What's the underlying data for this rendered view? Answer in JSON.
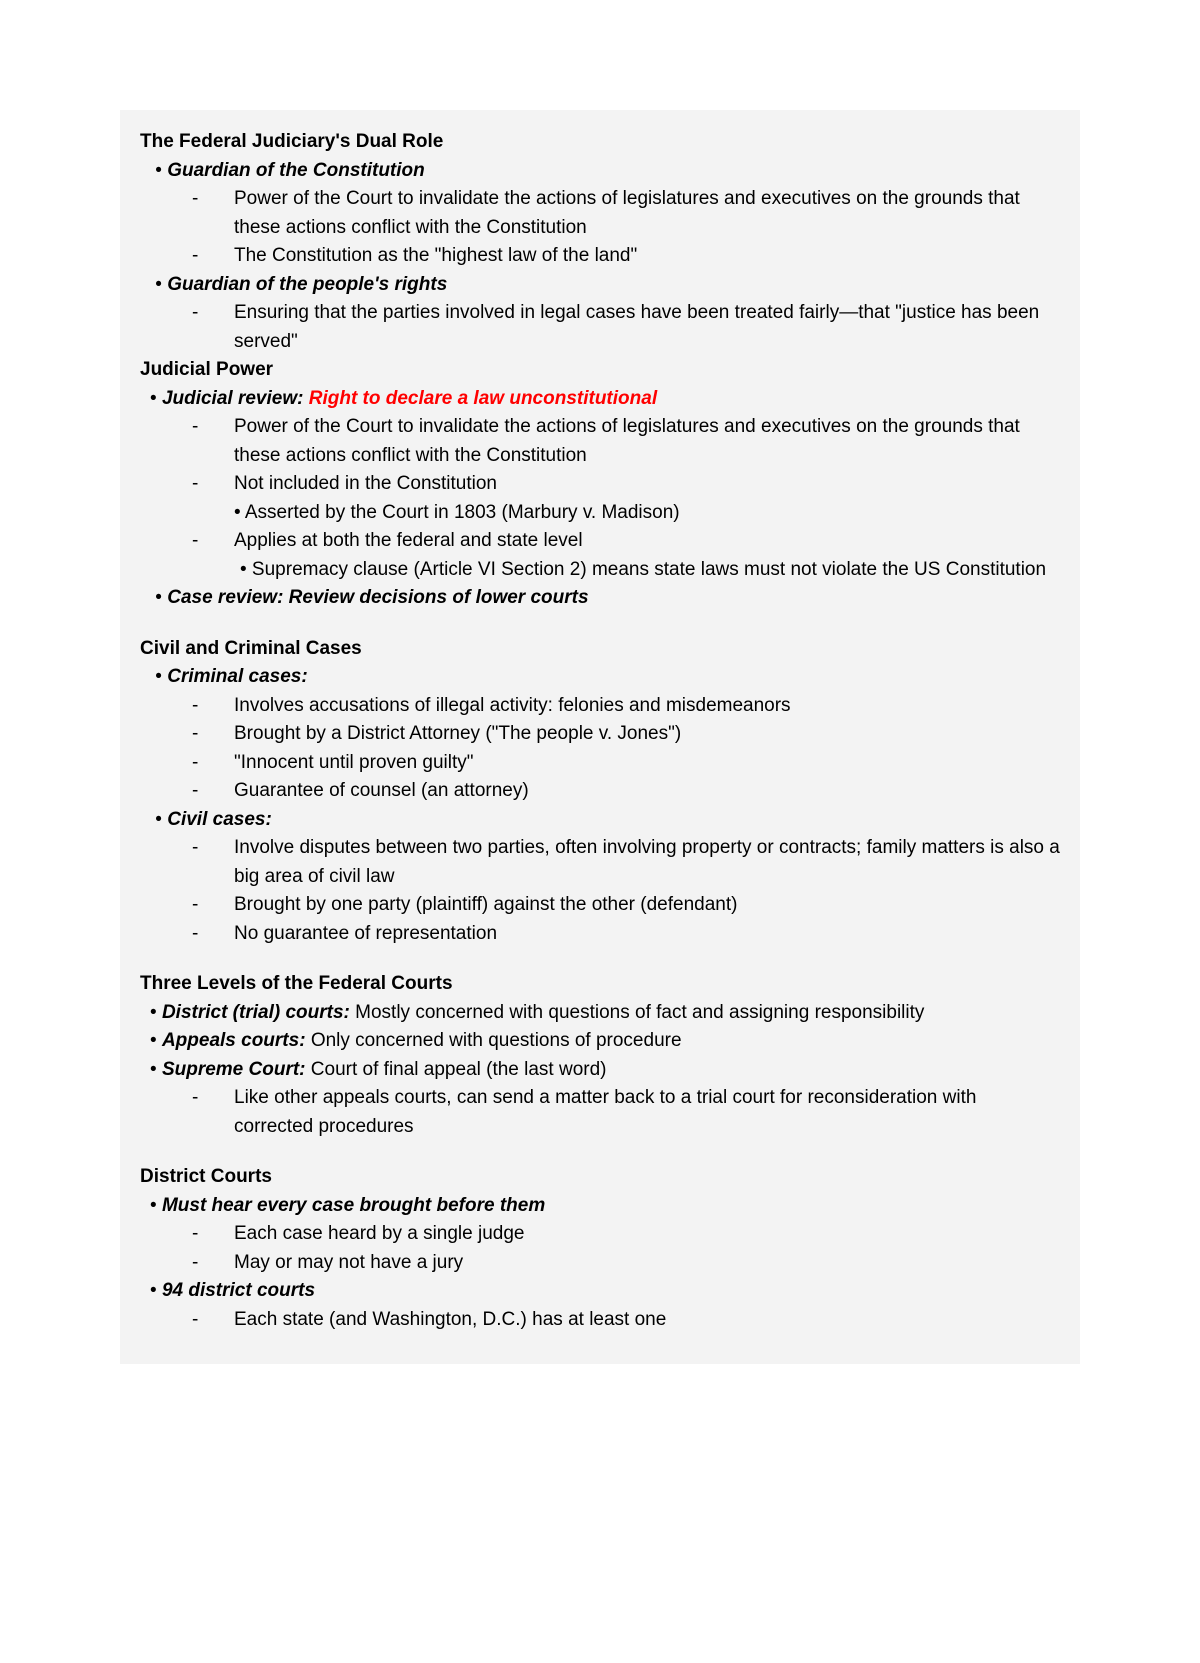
{
  "colors": {
    "page_bg": "#f3f3f3",
    "text": "#000000",
    "highlight_red": "#ff0000"
  },
  "typography": {
    "font_family": "Arial",
    "font_size_pt": 14,
    "line_height": 1.5,
    "heading_weight": "bold",
    "subheading_style": "bold italic"
  },
  "s1": {
    "title": "The Federal Judiciary's Dual Role",
    "b1": {
      "label": "Guardian of the Constitution",
      "d1": "Power of the Court to invalidate the actions of legislatures and executives on the grounds that these actions conflict with the Constitution",
      "d2": "The Constitution as the \"highest law of the land\""
    },
    "b2": {
      "label": "Guardian of the people's rights",
      "d1": "Ensuring that the parties involved in legal cases have been treated fairly—that \"justice has been served\""
    }
  },
  "s2": {
    "title": "Judicial Power",
    "b1": {
      "label": "Judicial review: ",
      "highlight": "Right to declare a law unconstitutional",
      "d1": "Power of the Court to invalidate the actions of legislatures and executives on the grounds that these actions conflict with the Constitution",
      "d2": "Not included in the Constitution",
      "d2_sub": "• Asserted by the Court in 1803 (Marbury v. Madison)",
      "d3": "Applies at both the federal and state level",
      "d3_sub": "• Supremacy clause (Article VI Section 2) means state laws must not violate the US Constitution"
    },
    "b2": {
      "label": "Case review: Review decisions of lower courts"
    }
  },
  "s3": {
    "title": "Civil and Criminal Cases",
    "b1": {
      "label": "Criminal cases:",
      "d1": "Involves accusations of illegal activity: felonies and misdemeanors",
      "d2": "Brought by a District Attorney (\"The people v. Jones\")",
      "d3": "\"Innocent until proven guilty\"",
      "d4": "Guarantee of counsel (an attorney)"
    },
    "b2": {
      "label": "Civil cases:",
      "d1": "Involve disputes between two parties, often involving property or contracts; family matters is also a big area of civil law",
      "d2": "Brought by one party (plaintiff) against the other (defendant)",
      "d3": "No guarantee of representation"
    }
  },
  "s4": {
    "title": "Three Levels of the Federal Courts",
    "b1": {
      "label": "District (trial) courts: ",
      "rest": "Mostly concerned with questions of fact and assigning responsibility"
    },
    "b2": {
      "label": "Appeals courts: ",
      "rest": "Only concerned with questions of procedure"
    },
    "b3": {
      "label": "Supreme Court: ",
      "rest": "Court of final appeal (the last word)",
      "d1": "Like other appeals courts, can send a matter back to a trial court for reconsideration with corrected procedures"
    }
  },
  "s5": {
    "title": "District Courts",
    "b1": {
      "label": "Must hear every case brought before them",
      "d1": "Each case heard by a single judge",
      "d2": "May or may not have a jury"
    },
    "b2": {
      "label": "94 district courts",
      "d1": "Each state (and Washington, D.C.) has at least one"
    }
  }
}
